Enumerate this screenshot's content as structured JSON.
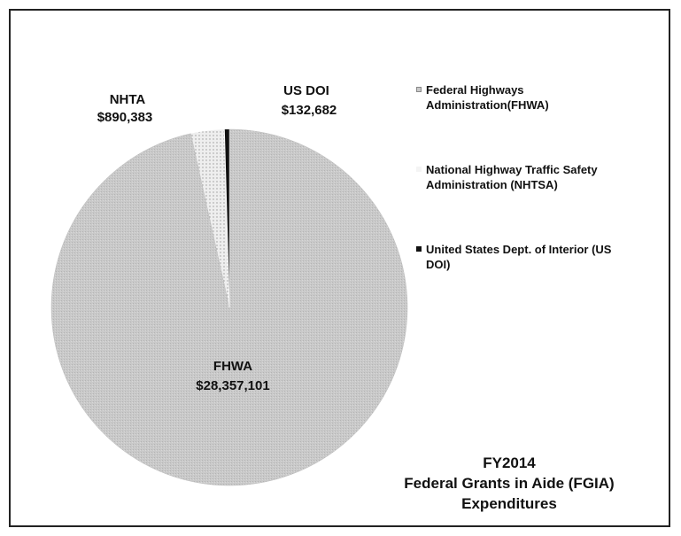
{
  "chart_data": {
    "type": "pie",
    "title_lines": [
      "FY2014",
      "Federal Grants in Aide (FGIA)",
      "Expenditures"
    ],
    "slices": [
      {
        "short": "FHWA",
        "value": 28357101,
        "value_label": "$28,357,101",
        "legend": "Federal Highways Administration(FHWA)",
        "color": "#c8c8c8"
      },
      {
        "short": "NHTA",
        "value": 890383,
        "value_label": "$890,383",
        "legend": "National Highway Traffic Safety Administration (NHTSA)",
        "color": "#e9e9e9"
      },
      {
        "short": "US DOI",
        "value": 132682,
        "value_label": "$132,682",
        "legend": "United States Dept. of Interior (US DOI)",
        "color": "#111111"
      }
    ],
    "legend_position": "right"
  }
}
